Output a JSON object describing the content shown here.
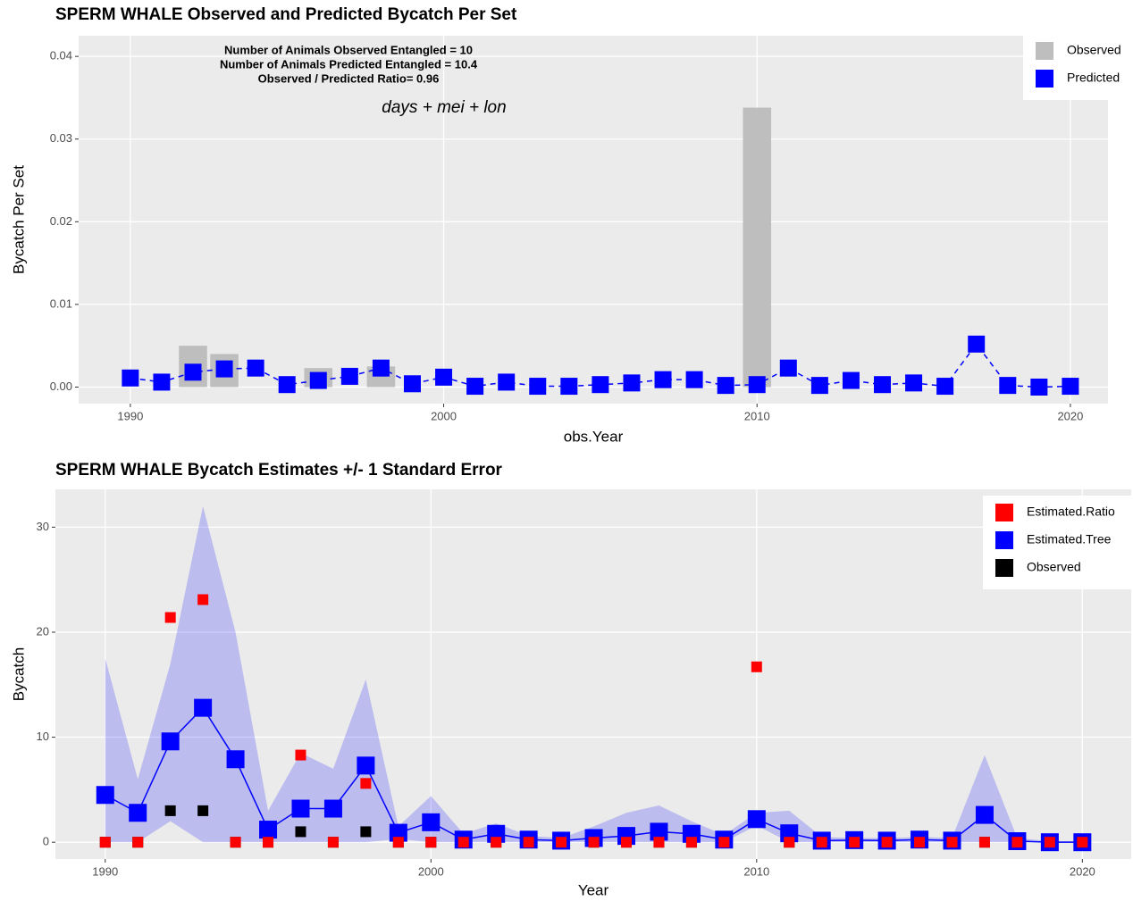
{
  "chart_data": [
    {
      "type": "combo",
      "title": "SPERM WHALE Observed and Predicted Bycatch Per Set",
      "annotations": [
        "Number of Animals Observed Entangled = 10",
        "Number of Animals Predicted Entangled = 10.4",
        "Observed / Predicted Ratio= 0.96"
      ],
      "model": "days + mei + lon",
      "x_label": "obs.Year",
      "y_label": "Bycatch Per Set",
      "x": [
        1990,
        1991,
        1992,
        1993,
        1994,
        1995,
        1996,
        1997,
        1998,
        1999,
        2000,
        2001,
        2002,
        2003,
        2004,
        2005,
        2006,
        2007,
        2008,
        2009,
        2010,
        2011,
        2012,
        2013,
        2014,
        2015,
        2016,
        2017,
        2018,
        2019,
        2020
      ],
      "series": [
        {
          "name": "Observed",
          "color": "#bebebe",
          "mark": "bar",
          "values": [
            0,
            0,
            0.005,
            0.004,
            0,
            0,
            0.0023,
            0,
            0.0025,
            0,
            0,
            0,
            0,
            0,
            0,
            0,
            0,
            0,
            0,
            0,
            0.0338,
            0,
            0,
            0,
            0,
            0,
            0,
            0,
            0,
            0,
            0
          ]
        },
        {
          "name": "Predicted",
          "color": "#0000ff",
          "mark": "square",
          "line": "dashed",
          "values": [
            0.0011,
            0.0006,
            0.0018,
            0.0022,
            0.0023,
            0.0003,
            0.0008,
            0.0013,
            0.0023,
            0.0004,
            0.0012,
            0.0001,
            0.0006,
            0.0001,
            0.0001,
            0.0003,
            0.0005,
            0.0009,
            0.0009,
            0.0002,
            0.0003,
            0.0023,
            0.0002,
            0.0008,
            0.0003,
            0.0005,
            0.0001,
            0.0052,
            0.0002,
            0,
            0.0001
          ]
        }
      ],
      "xlim": [
        1988.35,
        2021.2
      ],
      "xticks": [
        1990,
        2000,
        2010,
        2020
      ],
      "ylim": [
        -0.002,
        0.0425
      ],
      "yticks": [
        {
          "value": 0,
          "label": "0.00"
        },
        0.01,
        0.02,
        0.03,
        0.04
      ],
      "grid": true,
      "legend": "top-right"
    },
    {
      "type": "ribbon",
      "title": "SPERM WHALE Bycatch Estimates +/- 1 Standard Error",
      "x_label": "Year",
      "y_label": "Bycatch",
      "x": [
        1990,
        1991,
        1992,
        1993,
        1994,
        1995,
        1996,
        1997,
        1998,
        1999,
        2000,
        2001,
        2002,
        2003,
        2004,
        2005,
        2006,
        2007,
        2008,
        2009,
        2010,
        2011,
        2012,
        2013,
        2014,
        2015,
        2016,
        2017,
        2018,
        2019,
        2020
      ],
      "band": {
        "color": "#0000ff",
        "upper": [
          17.5,
          6,
          17,
          32,
          20,
          3,
          8.5,
          7,
          15.5,
          1.5,
          4.4,
          0.8,
          1.8,
          0.6,
          0.4,
          1.5,
          2.8,
          3.5,
          2,
          0.7,
          2.8,
          3,
          0.5,
          0.4,
          0.4,
          0.5,
          0.4,
          8.3,
          0.4,
          0.1,
          0.1
        ],
        "lower": [
          0,
          0,
          2,
          0,
          0,
          0,
          0,
          0,
          0,
          0.3,
          0,
          0,
          0,
          0,
          0,
          0,
          0,
          0,
          0,
          0,
          1.6,
          0,
          0,
          0,
          0,
          0,
          0,
          0,
          0,
          0,
          0
        ]
      },
      "series": [
        {
          "name": "Estimated.Ratio",
          "color": "#ff0000",
          "mark": "square",
          "values": [
            0,
            0,
            21.4,
            23.1,
            0,
            0,
            8.3,
            0,
            5.6,
            0,
            0,
            0,
            0,
            0,
            0,
            0,
            0,
            0,
            0,
            0,
            16.7,
            0,
            0,
            0,
            0,
            0,
            0,
            0,
            0,
            0,
            0
          ]
        },
        {
          "name": "Estimated.Tree",
          "color": "#0000ff",
          "mark": "square",
          "line": "solid",
          "values": [
            4.5,
            2.8,
            9.6,
            12.8,
            7.9,
            1.2,
            3.2,
            3.2,
            7.3,
            0.9,
            1.9,
            0.25,
            0.8,
            0.25,
            0.15,
            0.4,
            0.6,
            1.0,
            0.8,
            0.25,
            2.2,
            0.85,
            0.15,
            0.2,
            0.15,
            0.25,
            0.15,
            2.6,
            0.1,
            0,
            0
          ]
        },
        {
          "name": "Observed",
          "color": "#000000",
          "mark": "square",
          "values": [
            0,
            0,
            3,
            3,
            0,
            0,
            1,
            0,
            1,
            0,
            0,
            0,
            0,
            0,
            0,
            0,
            0,
            0,
            0,
            0,
            2,
            0,
            0,
            0,
            0,
            0,
            0,
            0,
            0,
            0,
            0
          ]
        }
      ],
      "xlim": [
        1988.47,
        2021.5
      ],
      "xticks": [
        1990,
        2000,
        2010,
        2020
      ],
      "ylim": [
        -1.6,
        33.6
      ],
      "yticks": [
        0,
        10,
        20,
        30
      ],
      "grid": true,
      "legend": "top-right"
    }
  ]
}
